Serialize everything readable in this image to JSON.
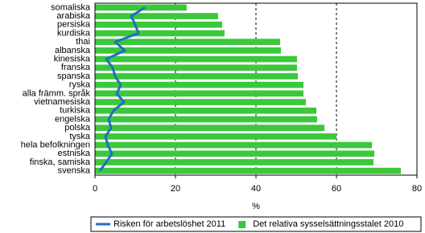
{
  "chart_data": {
    "type": "bar",
    "orientation": "horizontal",
    "categories": [
      "somaliska",
      "arabiska",
      "persiska",
      "kurdiska",
      "thai",
      "albanska",
      "kinesiska",
      "franska",
      "spanska",
      "ryska",
      "alla främm. språk",
      "vietnamesiska",
      "turkiska",
      "engelska",
      "polska",
      "tyska",
      "hela befolkningen",
      "estniska",
      "finska, samiska",
      "svenska"
    ],
    "series": [
      {
        "name": "Risken för arbetslöshet 2011",
        "type": "line",
        "color": "#1f6fc5",
        "values": [
          12.4,
          9,
          10,
          10.8,
          5,
          7.4,
          2.8,
          4.4,
          5,
          6.4,
          5.4,
          7.2,
          4.6,
          3.4,
          4,
          2.6,
          3.2,
          4.2,
          2.8,
          1.2
        ]
      },
      {
        "name": "Det relativa sysselsättningsstalet 2010",
        "type": "bar",
        "color": "#3cc83c",
        "values": [
          22.8,
          30.6,
          31.6,
          32.2,
          46,
          46.2,
          50.2,
          50.2,
          50.4,
          51.8,
          51.8,
          52.4,
          55,
          55.2,
          57,
          60,
          68.8,
          69.4,
          69.2,
          76
        ]
      }
    ],
    "xlabel": "%",
    "xlim": [
      0,
      80
    ],
    "xticks": [
      0,
      20,
      40,
      60,
      80
    ],
    "grid": true,
    "legend": "bottom"
  }
}
